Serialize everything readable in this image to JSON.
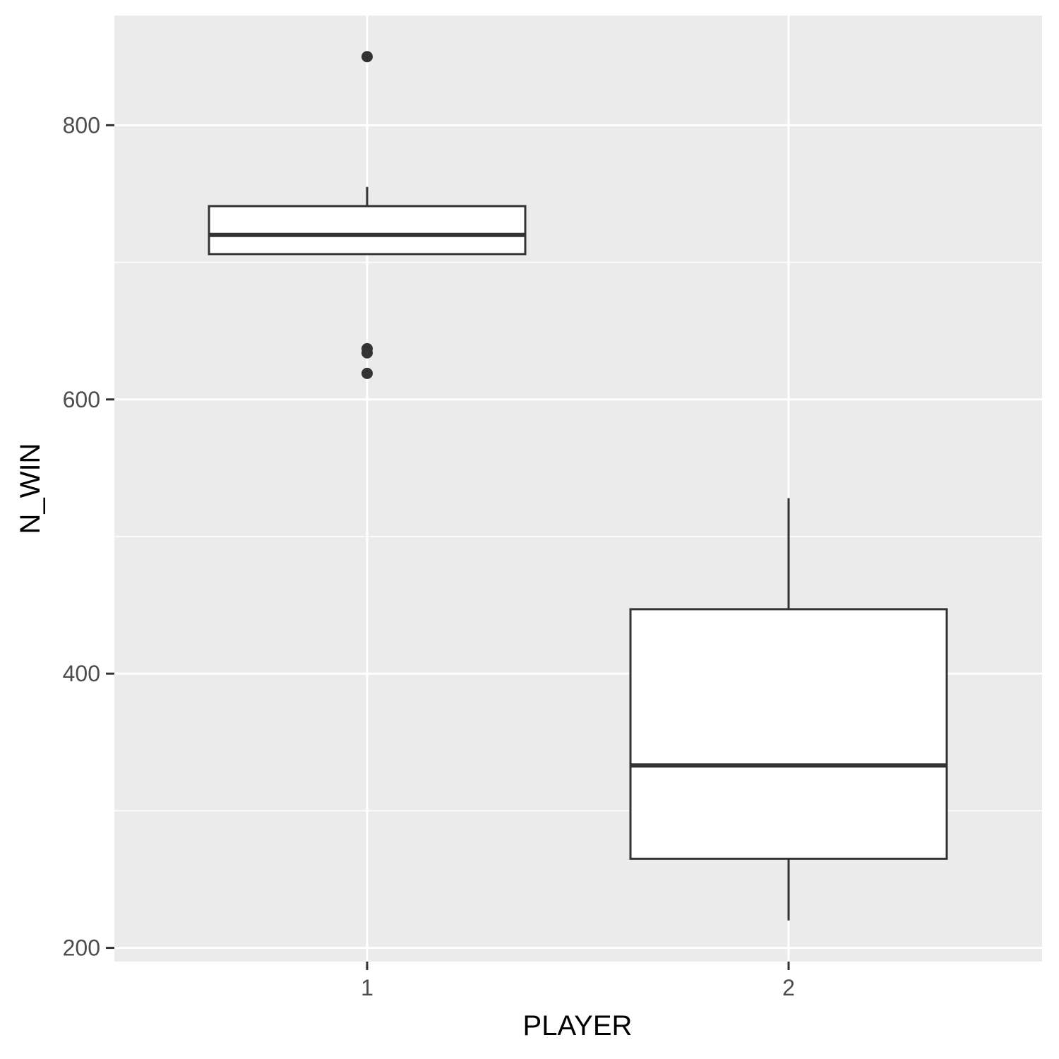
{
  "chart_data": {
    "type": "boxplot",
    "title": "",
    "xlabel": "PLAYER",
    "ylabel": "N_WIN",
    "categories": [
      "1",
      "2"
    ],
    "ylim": [
      190,
      880
    ],
    "yticks": [
      200,
      400,
      600,
      800
    ],
    "y_minor_grid": [
      300,
      500,
      700
    ],
    "grid": true,
    "background": "#ebebeb",
    "box_fill": "#ffffff",
    "line_color": "#333333",
    "boxes": [
      {
        "category": "1",
        "whisker_low": 706,
        "q1": 706,
        "median": 720,
        "q3": 741,
        "whisker_high": 755,
        "outliers": [
          850,
          637,
          634,
          619
        ]
      },
      {
        "category": "2",
        "whisker_low": 220,
        "q1": 265,
        "median": 333,
        "q3": 447,
        "whisker_high": 528,
        "outliers": []
      }
    ]
  }
}
